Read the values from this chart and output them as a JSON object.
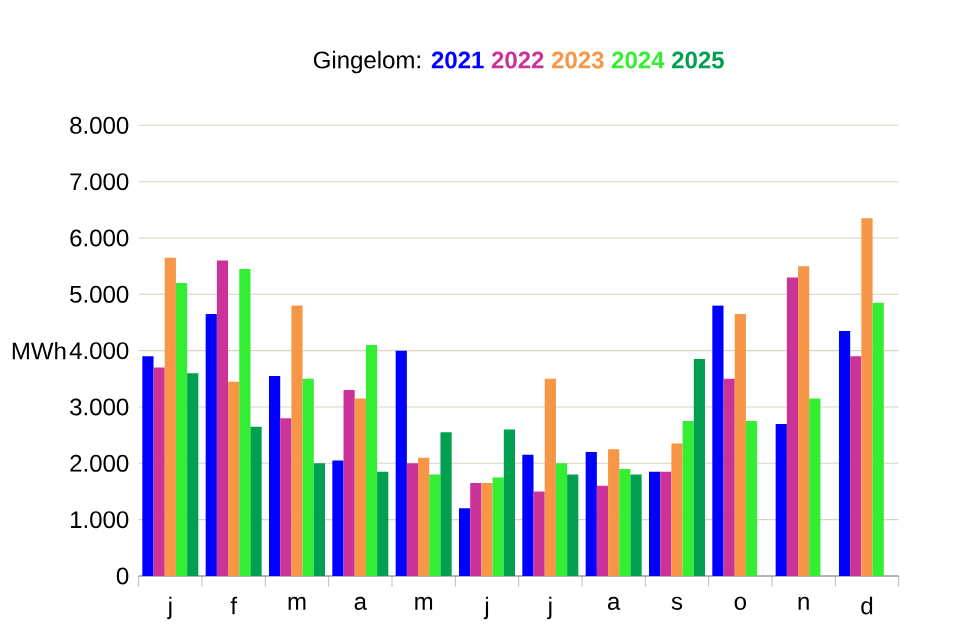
{
  "chart_data": {
    "type": "bar",
    "title": "Gingelom:",
    "ylabel": "MWh",
    "categories": [
      "j",
      "f",
      "m",
      "a",
      "m",
      "j",
      "j",
      "a",
      "s",
      "o",
      "n",
      "d"
    ],
    "series": [
      {
        "name": "2021",
        "color": "#0000ff",
        "values": [
          3900,
          4650,
          3550,
          2050,
          4000,
          1200,
          2150,
          2200,
          1850,
          4800,
          2700,
          4350
        ]
      },
      {
        "name": "2022",
        "color": "#cc3399",
        "values": [
          3700,
          5600,
          2800,
          3300,
          2000,
          1650,
          1500,
          1600,
          1850,
          3500,
          5300,
          3900
        ]
      },
      {
        "name": "2023",
        "color": "#f79646",
        "values": [
          5650,
          3450,
          4800,
          3150,
          2100,
          1650,
          3500,
          2250,
          2350,
          4650,
          5500,
          6350
        ]
      },
      {
        "name": "2024",
        "color": "#33ee33",
        "values": [
          5200,
          5450,
          3500,
          4100,
          1800,
          1750,
          2000,
          1900,
          2750,
          2750,
          3150,
          4850
        ]
      },
      {
        "name": "2025",
        "color": "#00a050",
        "values": [
          3600,
          2650,
          2000,
          1850,
          2550,
          2600,
          1800,
          1800,
          3850,
          null,
          null,
          null
        ]
      }
    ],
    "ylim": [
      0,
      8000
    ],
    "yticks": [
      {
        "value": 0,
        "label": "0"
      },
      {
        "value": 1000,
        "label": "1.000"
      },
      {
        "value": 2000,
        "label": "2.000"
      },
      {
        "value": 3000,
        "label": "3.000"
      },
      {
        "value": 4000,
        "label": "4.000"
      },
      {
        "value": 5000,
        "label": "5.000"
      },
      {
        "value": 6000,
        "label": "6.000"
      },
      {
        "value": 7000,
        "label": "7.000"
      },
      {
        "value": 8000,
        "label": "8.000"
      }
    ],
    "grid": "y",
    "legend": "top"
  }
}
